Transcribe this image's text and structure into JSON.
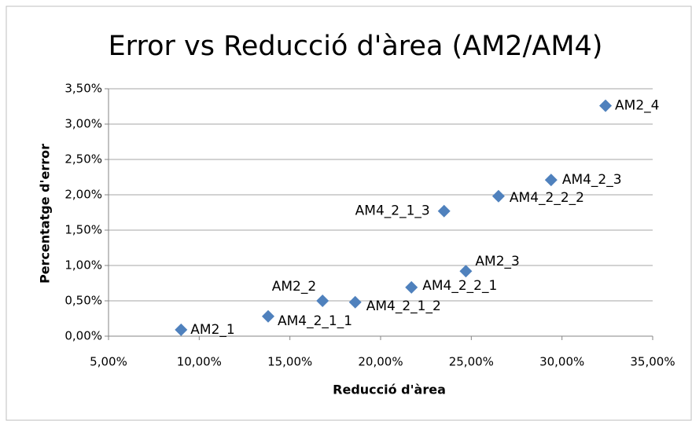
{
  "chart_data": {
    "type": "scatter",
    "title": "Error vs Reducció d'àrea (AM2/AM4)",
    "x_label": "Reducció d'àrea",
    "y_label": "Percentatge d'error",
    "series": [
      {
        "color": "#4f81bd",
        "x": [
          9.0,
          13.8,
          16.8,
          18.6,
          21.7,
          24.7,
          23.5,
          26.5,
          29.4,
          32.4
        ],
        "values": [
          0.09,
          0.28,
          0.5,
          0.48,
          0.69,
          0.92,
          1.77,
          1.98,
          2.21,
          3.26
        ],
        "point_labels": [
          "AM2_1",
          "AM4_2_1_1",
          "AM2_2",
          "AM4_2_1_2",
          "AM4_2_2_1",
          "AM2_3",
          "AM4_2_1_3",
          "AM4_2_2_2",
          "AM4_2_3",
          "AM2_4"
        ]
      }
    ],
    "xlim": [
      5,
      35
    ],
    "xticks": [
      {
        "value": 5,
        "label": "5,00%"
      },
      {
        "value": 10,
        "label": "10,00%"
      },
      {
        "value": 15,
        "label": "15,00%"
      },
      {
        "value": 20,
        "label": "20,00%"
      },
      {
        "value": 25,
        "label": "25,00%"
      },
      {
        "value": 30,
        "label": "30,00%"
      },
      {
        "value": 35,
        "label": "35,00%"
      }
    ],
    "ylim": [
      0,
      3.5
    ],
    "yticks": [
      {
        "value": 0,
        "label": "0,00%"
      },
      {
        "value": 0.5,
        "label": "0,50%"
      },
      {
        "value": 1,
        "label": "1,00%"
      },
      {
        "value": 1.5,
        "label": "1,50%"
      },
      {
        "value": 2,
        "label": "2,00%"
      },
      {
        "value": 2.5,
        "label": "2,50%"
      },
      {
        "value": 3,
        "label": "3,00%"
      },
      {
        "value": 3.5,
        "label": "3,50%"
      }
    ],
    "grid": true
  }
}
